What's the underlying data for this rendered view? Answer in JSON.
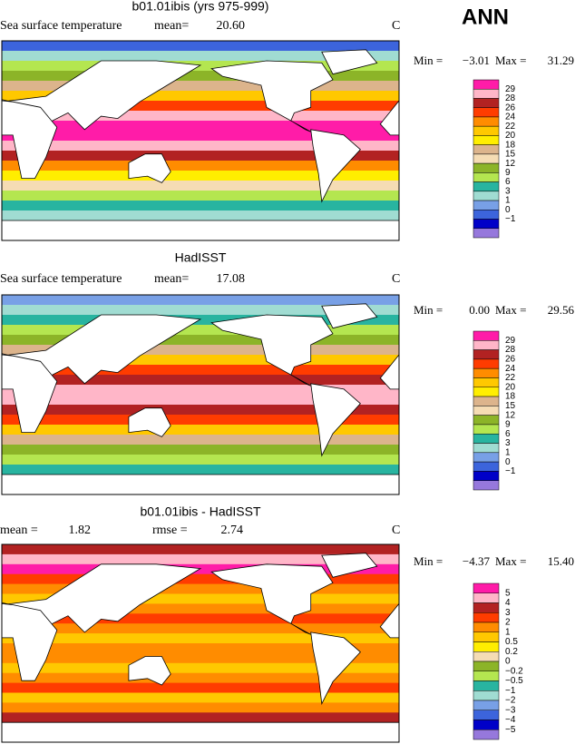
{
  "header": {
    "season": "ANN"
  },
  "panels": [
    {
      "title": "b01.01ibis (yrs 975-999)",
      "variable": "Sea surface temperature",
      "stats": [
        {
          "label": "mean=",
          "value": "20.60"
        }
      ],
      "units": "C",
      "min_label": "Min =",
      "min": "−3.01",
      "max_label": "Max =",
      "max": "31.29",
      "colorbar": {
        "labels": [
          "29",
          "28",
          "26",
          "24",
          "22",
          "20",
          "18",
          "15",
          "12",
          "9",
          "6",
          "3",
          "1",
          "0",
          "−1"
        ],
        "colors": [
          "#ff1ca8",
          "#ffb6c8",
          "#b22222",
          "#ff3c00",
          "#ff8c00",
          "#ffc800",
          "#ffee00",
          "#dcb48c",
          "#f5dcb4",
          "#8cb428",
          "#b4e650",
          "#28b4a0",
          "#a0dcd2",
          "#78a0e6",
          "#3c64dc",
          "#0000c8",
          "#9678dc"
        ]
      }
    },
    {
      "title": "HadISST",
      "variable": "Sea surface temperature",
      "stats": [
        {
          "label": "mean=",
          "value": "17.08"
        }
      ],
      "units": "C",
      "min_label": "Min =",
      "min": "0.00",
      "max_label": "Max =",
      "max": "29.56",
      "colorbar": {
        "labels": [
          "29",
          "28",
          "26",
          "24",
          "22",
          "20",
          "18",
          "15",
          "12",
          "9",
          "6",
          "3",
          "1",
          "0",
          "−1"
        ],
        "colors": [
          "#ff1ca8",
          "#ffb6c8",
          "#b22222",
          "#ff3c00",
          "#ff8c00",
          "#ffc800",
          "#ffee00",
          "#dcb48c",
          "#f5dcb4",
          "#8cb428",
          "#b4e650",
          "#28b4a0",
          "#a0dcd2",
          "#78a0e6",
          "#3c64dc",
          "#0000c8",
          "#9678dc"
        ]
      }
    },
    {
      "title": "b01.01ibis - HadISST",
      "variable": null,
      "stats": [
        {
          "label": "mean =",
          "value": "1.82"
        },
        {
          "label": "rmse =",
          "value": "2.74"
        }
      ],
      "units": "C",
      "min_label": "Min =",
      "min": "−4.37",
      "max_label": "Max =",
      "max": "15.40",
      "colorbar": {
        "labels": [
          "5",
          "4",
          "3",
          "2",
          "1",
          "0.5",
          "0.2",
          "0",
          "−0.2",
          "−0.5",
          "−1",
          "−2",
          "−3",
          "−4",
          "−5"
        ],
        "colors": [
          "#ff1ca8",
          "#ffb6c8",
          "#b22222",
          "#ff3c00",
          "#ff8c00",
          "#ffc800",
          "#ffee00",
          "#f5dcb4",
          "#8cb428",
          "#b4e650",
          "#28b4a0",
          "#a0dcd2",
          "#78a0e6",
          "#3c64dc",
          "#0000c8",
          "#9678dc"
        ]
      }
    }
  ]
}
